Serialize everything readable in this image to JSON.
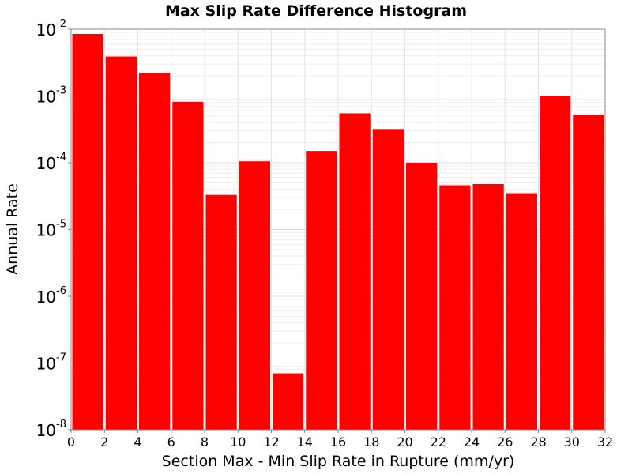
{
  "chart_data": {
    "type": "bar",
    "title": "Max Slip Rate Difference Histogram",
    "xlabel": "Section Max - Min Slip Rate in Rupture (mm/yr)",
    "ylabel": "Annual Rate",
    "xlim": [
      0,
      32
    ],
    "ylim": [
      1e-08,
      0.01
    ],
    "y_scale": "log",
    "bin_width": 2,
    "x_ticks": [
      "0",
      "2",
      "4",
      "6",
      "8",
      "10",
      "12",
      "14",
      "16",
      "18",
      "20",
      "22",
      "24",
      "26",
      "28",
      "30",
      "32"
    ],
    "y_ticks": [
      {
        "base": "10",
        "exp": "-8",
        "value": 1e-08
      },
      {
        "base": "10",
        "exp": "-7",
        "value": 1e-07
      },
      {
        "base": "10",
        "exp": "-6",
        "value": 1e-06
      },
      {
        "base": "10",
        "exp": "-5",
        "value": 1e-05
      },
      {
        "base": "10",
        "exp": "-4",
        "value": 0.0001
      },
      {
        "base": "10",
        "exp": "-3",
        "value": 0.001
      },
      {
        "base": "10",
        "exp": "-2",
        "value": 0.01
      }
    ],
    "x": [
      1,
      3,
      5,
      7,
      9,
      11,
      13,
      15,
      17,
      19,
      21,
      23,
      25,
      27,
      29,
      31
    ],
    "values": [
      0.0085,
      0.0039,
      0.0022,
      0.00082,
      3.3e-05,
      0.000105,
      7e-08,
      0.00015,
      0.00055,
      0.00032,
      0.0001,
      4.6e-05,
      4.8e-05,
      3.5e-05,
      0.001,
      0.00052
    ],
    "bar_color": "#ff0000",
    "grid": true
  }
}
